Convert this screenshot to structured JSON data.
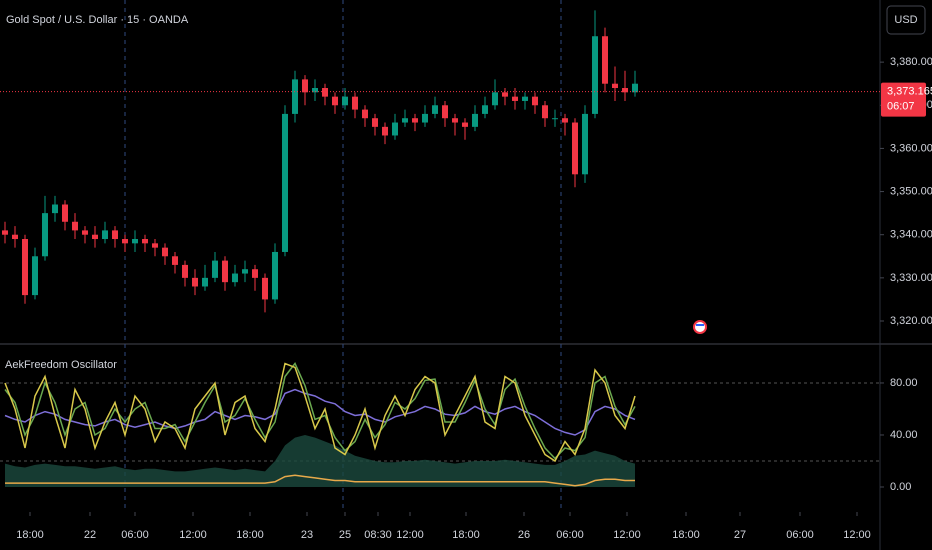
{
  "chart_data": [
    {
      "type": "candlestick",
      "title": "Gold Spot / U.S. Dollar · 15 · OANDA",
      "currency": "USD",
      "open": [
        3341,
        3340,
        3339,
        3326,
        3335,
        3345,
        3347,
        3343,
        3341,
        3340,
        3339,
        3341,
        3339,
        3338,
        3339,
        3338,
        3337,
        3335,
        3333,
        3330,
        3328,
        3330,
        3334,
        3329,
        3331,
        3332,
        3330,
        3325,
        3336,
        3368,
        3376,
        3373,
        3374,
        3372,
        3370,
        3372,
        3369,
        3367,
        3365,
        3363,
        3366,
        3367,
        3366,
        3368,
        3370,
        3367,
        3366,
        3365,
        3368,
        3370,
        3373,
        3372,
        3371,
        3372,
        3370,
        3367,
        3367,
        3366,
        3354,
        3368,
        3386,
        3375,
        3374,
        3373
      ],
      "high": [
        3343,
        3342,
        3340,
        3337,
        3349,
        3349,
        3348,
        3345,
        3342,
        3342,
        3343,
        3342,
        3340,
        3341,
        3340,
        3339,
        3338,
        3336,
        3334,
        3332,
        3333,
        3336,
        3335,
        3333,
        3334,
        3333,
        3331,
        3338,
        3370,
        3378,
        3377,
        3376,
        3375,
        3373,
        3374,
        3373,
        3370,
        3368,
        3366,
        3368,
        3369,
        3368,
        3370,
        3372,
        3371,
        3368,
        3367,
        3370,
        3372,
        3376,
        3374,
        3374,
        3373,
        3373,
        3371,
        3369,
        3368,
        3367,
        3370,
        3392,
        3388,
        3379,
        3378,
        3378
      ],
      "low": [
        3338,
        3337,
        3324,
        3325,
        3334,
        3343,
        3341,
        3339,
        3338,
        3337,
        3338,
        3337,
        3336,
        3336,
        3336,
        3335,
        3333,
        3331,
        3328,
        3326,
        3327,
        3329,
        3327,
        3328,
        3329,
        3327,
        3322,
        3324,
        3335,
        3366,
        3370,
        3371,
        3370,
        3368,
        3369,
        3367,
        3365,
        3363,
        3361,
        3362,
        3365,
        3364,
        3365,
        3367,
        3365,
        3363,
        3362,
        3364,
        3367,
        3369,
        3370,
        3369,
        3369,
        3368,
        3365,
        3365,
        3363,
        3351,
        3352,
        3367,
        3373,
        3371,
        3371,
        3372
      ],
      "close": [
        3340,
        3339,
        3326,
        3335,
        3345,
        3347,
        3343,
        3341,
        3340,
        3339,
        3341,
        3339,
        3338,
        3339,
        3338,
        3337,
        3335,
        3333,
        3330,
        3328,
        3330,
        3334,
        3329,
        3331,
        3332,
        3330,
        3325,
        3336,
        3368,
        3376,
        3373,
        3374,
        3372,
        3370,
        3372,
        3369,
        3367,
        3365,
        3363,
        3366,
        3367,
        3366,
        3368,
        3370,
        3367,
        3366,
        3365,
        3368,
        3370,
        3373,
        3372,
        3371,
        3372,
        3370,
        3367,
        3367,
        3366,
        3354,
        3368,
        3386,
        3375,
        3374,
        3373,
        3375
      ],
      "up_color": "#089981",
      "down_color": "#f23645",
      "xlim": [
        0,
        88
      ],
      "xticks": [
        {
          "value": 3,
          "label": "18:00"
        },
        {
          "value": 9,
          "label": "22"
        },
        {
          "value": 13.5,
          "label": "06:00"
        },
        {
          "value": 19.3,
          "label": "12:00"
        },
        {
          "value": 25,
          "label": "18:00"
        },
        {
          "value": 30.7,
          "label": "23"
        },
        {
          "value": 34.5,
          "label": "25"
        },
        {
          "value": 37.8,
          "label": "08:30"
        },
        {
          "value": 41,
          "label": "12:00"
        },
        {
          "value": 46.6,
          "label": "18:00"
        },
        {
          "value": 52.4,
          "label": "26"
        },
        {
          "value": 57,
          "label": "06:00"
        },
        {
          "value": 62.7,
          "label": "12:00"
        },
        {
          "value": 68.6,
          "label": "18:00"
        },
        {
          "value": 74,
          "label": "27"
        },
        {
          "value": 80,
          "label": "06:00"
        },
        {
          "value": 85.7,
          "label": "12:00"
        }
      ],
      "session_lines": [
        12.5,
        34.3,
        56.1
      ],
      "ylim": [
        3314.9,
        3394.4
      ],
      "yticks": [
        {
          "value": 3320,
          "label": "3,320.000"
        },
        {
          "value": 3330,
          "label": "3,330.000"
        },
        {
          "value": 3340,
          "label": "3,340.000"
        },
        {
          "value": 3350,
          "label": "3,350.000"
        },
        {
          "value": 3360,
          "label": "3,360.000"
        },
        {
          "value": 3370,
          "label": "3,370.000"
        },
        {
          "value": 3380,
          "label": "3,380.000"
        }
      ],
      "last_price": {
        "value": 3373.165,
        "label": "3,373.165"
      },
      "countdown": "06:07",
      "last_color": "#f23645"
    },
    {
      "type": "line",
      "title": "AekFreedom Oscillator",
      "xlim": [
        0,
        88
      ],
      "ylim": [
        -17.7,
        109.2
      ],
      "yticks": [
        {
          "value": 0,
          "label": "0.00"
        },
        {
          "value": 40,
          "label": "40.00"
        },
        {
          "value": 80,
          "label": "80.00"
        }
      ],
      "levels": [
        80,
        20
      ],
      "series": [
        {
          "color": "#1b4a3e",
          "area": true,
          "values": [
            18,
            16,
            15,
            17,
            18,
            17,
            16,
            16,
            15,
            14,
            15,
            16,
            14,
            13,
            14,
            14,
            13,
            12,
            12,
            13,
            14,
            15,
            14,
            13,
            14,
            13,
            12,
            20,
            32,
            38,
            40,
            38,
            35,
            32,
            28,
            24,
            22,
            20,
            19,
            19,
            20,
            20,
            21,
            20,
            19,
            18,
            19,
            20,
            20,
            20,
            21,
            20,
            19,
            18,
            17,
            17,
            20,
            24,
            25,
            28,
            26,
            24,
            20,
            18
          ]
        },
        {
          "color": "#e8a94a",
          "values": [
            3,
            3,
            3,
            3,
            3,
            3,
            3,
            3,
            3,
            3,
            3,
            3,
            3,
            3,
            3,
            3,
            3,
            3,
            3,
            3,
            3,
            3,
            3,
            3,
            3,
            3,
            3,
            4,
            8,
            9,
            8,
            7,
            6,
            5,
            5,
            4,
            4,
            4,
            4,
            4,
            4,
            4,
            4,
            4,
            4,
            4,
            4,
            4,
            4,
            4,
            4,
            4,
            4,
            4,
            4,
            3,
            2,
            1,
            2,
            5,
            6,
            6,
            5,
            5
          ]
        },
        {
          "color": "#7e6fd9",
          "values": [
            55,
            52,
            50,
            55,
            58,
            56,
            52,
            50,
            48,
            47,
            50,
            52,
            48,
            46,
            48,
            50,
            47,
            45,
            47,
            50,
            52,
            58,
            55,
            52,
            55,
            54,
            52,
            56,
            72,
            75,
            72,
            70,
            66,
            64,
            58,
            55,
            56,
            52,
            50,
            54,
            56,
            58,
            62,
            60,
            56,
            55,
            57,
            62,
            58,
            56,
            60,
            62,
            58,
            55,
            50,
            45,
            42,
            40,
            44,
            58,
            62,
            60,
            55,
            52
          ]
        },
        {
          "color": "#6aa84f",
          "values": [
            75,
            65,
            40,
            55,
            80,
            65,
            40,
            60,
            65,
            40,
            45,
            60,
            50,
            60,
            65,
            45,
            45,
            48,
            35,
            50,
            65,
            78,
            50,
            55,
            68,
            52,
            38,
            50,
            85,
            95,
            78,
            52,
            55,
            38,
            28,
            35,
            52,
            38,
            48,
            65,
            60,
            68,
            82,
            83,
            50,
            50,
            65,
            82,
            60,
            48,
            75,
            83,
            62,
            45,
            30,
            22,
            30,
            28,
            38,
            80,
            85,
            62,
            48,
            62
          ]
        },
        {
          "color": "#d8c84a",
          "values": [
            80,
            60,
            30,
            70,
            85,
            55,
            30,
            75,
            60,
            30,
            50,
            65,
            40,
            70,
            60,
            35,
            50,
            45,
            30,
            60,
            70,
            80,
            40,
            65,
            70,
            45,
            35,
            60,
            95,
            92,
            70,
            45,
            60,
            30,
            25,
            40,
            60,
            30,
            55,
            70,
            55,
            75,
            85,
            80,
            40,
            55,
            70,
            85,
            50,
            45,
            85,
            80,
            55,
            40,
            25,
            20,
            35,
            25,
            45,
            90,
            80,
            55,
            45,
            70
          ]
        }
      ]
    }
  ]
}
